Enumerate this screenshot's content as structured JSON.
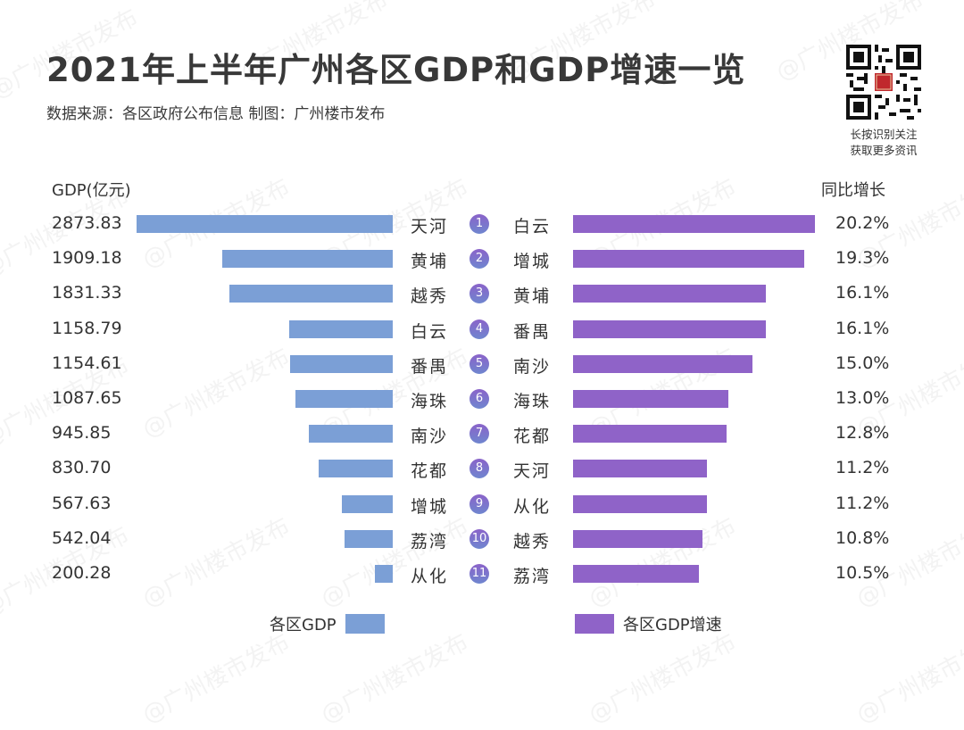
{
  "header": {
    "title": "2021年上半年广州各区GDP和GDP增速一览",
    "subtitle": "数据来源：各区政府公布信息  制图：广州楼市发布",
    "qr_caption_line1": "长按识别关注",
    "qr_caption_line2": "获取更多资讯",
    "qr_logo_text": "楼市发布"
  },
  "axis": {
    "left_label": "GDP(亿元)",
    "right_label": "同比增长"
  },
  "colors": {
    "gdp_bar": "#7b9fd6",
    "growth_bar": "#8f63c8",
    "badge_top": "#8a63c9",
    "badge_bottom": "#6f86cf"
  },
  "rows": [
    {
      "rank": "1",
      "gdp_value": "2873.83",
      "gdp_district": "天河",
      "growth_district": "白云",
      "growth_value": "20.2%"
    },
    {
      "rank": "2",
      "gdp_value": "1909.18",
      "gdp_district": "黄埔",
      "growth_district": "增城",
      "growth_value": "19.3%"
    },
    {
      "rank": "3",
      "gdp_value": "1831.33",
      "gdp_district": "越秀",
      "growth_district": "黄埔",
      "growth_value": "16.1%"
    },
    {
      "rank": "4",
      "gdp_value": "1158.79",
      "gdp_district": "白云",
      "growth_district": "番禺",
      "growth_value": "16.1%"
    },
    {
      "rank": "5",
      "gdp_value": "1154.61",
      "gdp_district": "番禺",
      "growth_district": "南沙",
      "growth_value": "15.0%"
    },
    {
      "rank": "6",
      "gdp_value": "1087.65",
      "gdp_district": "海珠",
      "growth_district": "海珠",
      "growth_value": "13.0%"
    },
    {
      "rank": "7",
      "gdp_value": "945.85",
      "gdp_district": "南沙",
      "growth_district": "花都",
      "growth_value": "12.8%"
    },
    {
      "rank": "8",
      "gdp_value": "830.70",
      "gdp_district": "花都",
      "growth_district": "天河",
      "growth_value": "11.2%"
    },
    {
      "rank": "9",
      "gdp_value": "567.63",
      "gdp_district": "增城",
      "growth_district": "从化",
      "growth_value": "11.2%"
    },
    {
      "rank": "10",
      "gdp_value": "542.04",
      "gdp_district": "荔湾",
      "growth_district": "越秀",
      "growth_value": "10.8%"
    },
    {
      "rank": "11",
      "gdp_value": "200.28",
      "gdp_district": "从化",
      "growth_district": "荔湾",
      "growth_value": "10.5%"
    }
  ],
  "legend": {
    "left": "各区GDP",
    "right": "各区GDP增速"
  },
  "watermark_text": "@广州楼市发布",
  "chart_data": [
    {
      "type": "bar",
      "orientation": "horizontal",
      "title": "2021年上半年广州各区GDP",
      "ylabel": "GDP(亿元)",
      "categories": [
        "天河",
        "黄埔",
        "越秀",
        "白云",
        "番禺",
        "海珠",
        "南沙",
        "花都",
        "增城",
        "荔湾",
        "从化"
      ],
      "values": [
        2873.83,
        1909.18,
        1831.33,
        1158.79,
        1154.61,
        1087.65,
        945.85,
        830.7,
        567.63,
        542.04,
        200.28
      ],
      "legend": "各区GDP",
      "color": "#7b9fd6",
      "direction": "bars extend leftward from center",
      "grid": false
    },
    {
      "type": "bar",
      "orientation": "horizontal",
      "title": "2021年上半年广州各区GDP增速",
      "ylabel": "同比增长",
      "categories": [
        "白云",
        "增城",
        "黄埔",
        "番禺",
        "南沙",
        "海珠",
        "花都",
        "天河",
        "从化",
        "越秀",
        "荔湾"
      ],
      "values": [
        20.2,
        19.3,
        16.1,
        16.1,
        15.0,
        13.0,
        12.8,
        11.2,
        11.2,
        10.8,
        10.5
      ],
      "unit": "%",
      "legend": "各区GDP增速",
      "color": "#8f63c8",
      "direction": "bars extend rightward from center",
      "grid": false
    }
  ]
}
